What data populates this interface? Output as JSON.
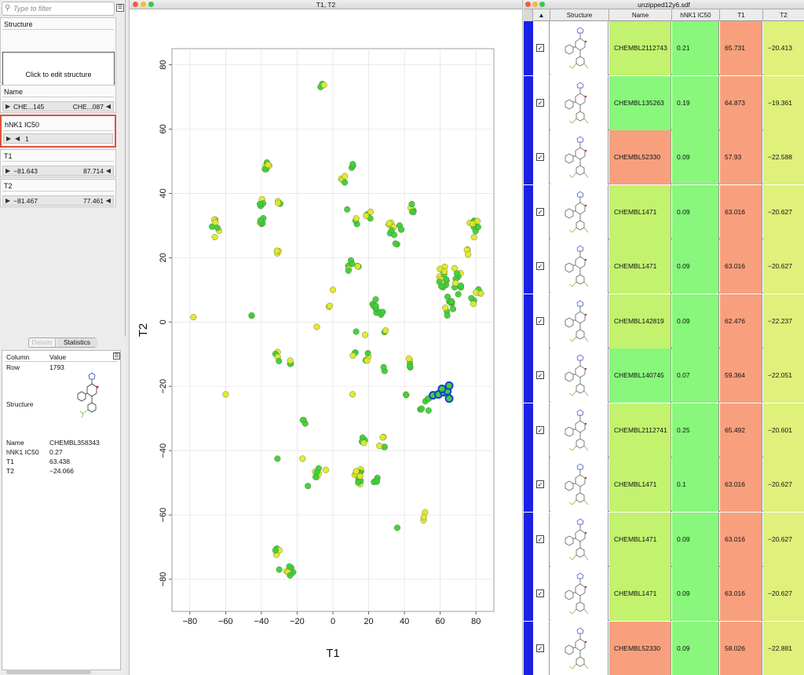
{
  "filter": {
    "placeholder": "Type to filter"
  },
  "structure_section": {
    "title": "Structure",
    "button": "Click to edit structure"
  },
  "name_section": {
    "title": "Name",
    "lo": "CHE...145",
    "hi": "CHE...087"
  },
  "hnk_section": {
    "title": "hNK1 IC50",
    "value": "1"
  },
  "t1_section": {
    "title": "T1",
    "lo": "−81.643",
    "hi": "87.714"
  },
  "t2_section": {
    "title": "T2",
    "lo": "−81.467",
    "hi": "77.461"
  },
  "details": {
    "tabs": [
      "Details",
      "Statistics"
    ],
    "col_header": "Column",
    "val_header": "Value",
    "row_label": "Row",
    "row_value": "1793",
    "structure_label": "Structure",
    "name_label": "Name",
    "name_value": "CHEMBL358343",
    "hnk_label": "hNK1 IC50",
    "hnk_value": "0.27",
    "t1_label": "T1",
    "t1_value": "63.438",
    "t2_label": "T2",
    "t2_value": "−24.066"
  },
  "plot_window": {
    "title": "T1, T2"
  },
  "table_window": {
    "title": "unzipped12y6.sdf"
  },
  "chart_data": {
    "type": "scatter",
    "xlabel": "T1",
    "ylabel": "T2",
    "xlim": [
      -90,
      90
    ],
    "ylim": [
      -90,
      85
    ],
    "x_ticks": [
      -80,
      -60,
      -40,
      -20,
      0,
      20,
      40,
      60,
      80
    ],
    "y_ticks": [
      -80,
      -60,
      -40,
      -20,
      0,
      20,
      40,
      60,
      80
    ],
    "grid": true,
    "point_colors": {
      "green": "#3ccf3c",
      "yellow": "#e6e62c",
      "edge": "#5a8a2a"
    },
    "highlight_color": "#1c3fd0",
    "clusters": [
      {
        "x": -6,
        "y": 73,
        "n": 3,
        "spread": 1.2
      },
      {
        "x": -37,
        "y": 48,
        "n": 6,
        "spread": 1.5
      },
      {
        "x": -40,
        "y": 37,
        "n": 4,
        "spread": 1.5
      },
      {
        "x": -40,
        "y": 31.5,
        "n": 6,
        "spread": 1.3
      },
      {
        "x": -30,
        "y": 37,
        "n": 3,
        "spread": 1
      },
      {
        "x": -66,
        "y": 29,
        "n": 7,
        "spread": 2.5
      },
      {
        "x": -31,
        "y": 22,
        "n": 3,
        "spread": 1
      },
      {
        "x": 6,
        "y": 44,
        "n": 4,
        "spread": 1.5
      },
      {
        "x": 11,
        "y": 49,
        "n": 3,
        "spread": 1
      },
      {
        "x": 13,
        "y": 31.5,
        "n": 4,
        "spread": 1
      },
      {
        "x": 8,
        "y": 35,
        "n": 1,
        "spread": 0
      },
      {
        "x": 9,
        "y": 18,
        "n": 5,
        "spread": 2
      },
      {
        "x": 14,
        "y": 17,
        "n": 3,
        "spread": 1.5
      },
      {
        "x": 20,
        "y": 33,
        "n": 4,
        "spread": 1.5
      },
      {
        "x": 35,
        "y": 29,
        "n": 12,
        "spread": 4
      },
      {
        "x": 44,
        "y": 35,
        "n": 5,
        "spread": 1.5
      },
      {
        "x": 79,
        "y": 29,
        "n": 10,
        "spread": 3
      },
      {
        "x": 61,
        "y": 14,
        "n": 14,
        "spread": 3
      },
      {
        "x": 70,
        "y": 13,
        "n": 10,
        "spread": 3.5
      },
      {
        "x": 80,
        "y": 9,
        "n": 8,
        "spread": 3
      },
      {
        "x": 65,
        "y": 5,
        "n": 10,
        "spread": 3
      },
      {
        "x": 76,
        "y": 22,
        "n": 3,
        "spread": 1.5
      },
      {
        "x": 24,
        "y": 5,
        "n": 8,
        "spread": 2
      },
      {
        "x": 27,
        "y": 3,
        "n": 3,
        "spread": 1
      },
      {
        "x": 29,
        "y": -2.5,
        "n": 2,
        "spread": 0.6
      },
      {
        "x": 13,
        "y": -3,
        "n": 1,
        "spread": 0
      },
      {
        "x": 18,
        "y": -4,
        "n": 1,
        "spread": 0
      },
      {
        "x": -2,
        "y": 4.5,
        "n": 2,
        "spread": 0.5
      },
      {
        "x": 0,
        "y": 10,
        "n": 1,
        "spread": 0
      },
      {
        "x": -46,
        "y": 1.5,
        "n": 2,
        "spread": 1
      },
      {
        "x": -78,
        "y": 1.5,
        "n": 1,
        "spread": 0
      },
      {
        "x": -9,
        "y": -1.5,
        "n": 1,
        "spread": 0
      },
      {
        "x": -31,
        "y": -11,
        "n": 4,
        "spread": 1.5
      },
      {
        "x": -24,
        "y": -13,
        "n": 3,
        "spread": 1
      },
      {
        "x": 12,
        "y": -10,
        "n": 3,
        "spread": 1
      },
      {
        "x": 19,
        "y": -10.5,
        "n": 4,
        "spread": 1.5
      },
      {
        "x": 28,
        "y": -15,
        "n": 2,
        "spread": 1
      },
      {
        "x": 43,
        "y": -13,
        "n": 5,
        "spread": 1.5
      },
      {
        "x": -60,
        "y": -22.5,
        "n": 1,
        "spread": 0
      },
      {
        "x": 11,
        "y": -22.5,
        "n": 1,
        "spread": 0
      },
      {
        "x": 41,
        "y": -22,
        "n": 2,
        "spread": 0.6
      },
      {
        "x": 53,
        "y": -25,
        "n": 5,
        "spread": 2
      },
      {
        "x": 49,
        "y": -27.5,
        "n": 3,
        "spread": 1
      },
      {
        "x": -16,
        "y": -30.5,
        "n": 3,
        "spread": 1
      },
      {
        "x": 17,
        "y": -36,
        "n": 4,
        "spread": 1.5
      },
      {
        "x": 29,
        "y": -37,
        "n": 4,
        "spread": 1.5
      },
      {
        "x": 26,
        "y": -38.5,
        "n": 1,
        "spread": 0
      },
      {
        "x": -31,
        "y": -42.5,
        "n": 1,
        "spread": 0
      },
      {
        "x": -17,
        "y": -42.5,
        "n": 1,
        "spread": 0
      },
      {
        "x": 14,
        "y": -48,
        "n": 14,
        "spread": 2.5
      },
      {
        "x": 24,
        "y": -49,
        "n": 5,
        "spread": 1.5
      },
      {
        "x": -9,
        "y": -46.5,
        "n": 6,
        "spread": 1.5
      },
      {
        "x": -4,
        "y": -46,
        "n": 1,
        "spread": 0
      },
      {
        "x": -14,
        "y": -51,
        "n": 1,
        "spread": 0
      },
      {
        "x": 51,
        "y": -60,
        "n": 3,
        "spread": 1.5
      },
      {
        "x": 36,
        "y": -64,
        "n": 1,
        "spread": 0
      },
      {
        "x": -31,
        "y": -72,
        "n": 4,
        "spread": 1.5
      },
      {
        "x": -30,
        "y": -77,
        "n": 1,
        "spread": 0
      },
      {
        "x": -24,
        "y": -78,
        "n": 8,
        "spread": 2
      }
    ],
    "highlighted": [
      {
        "x": 56,
        "y": -22.8
      },
      {
        "x": 59,
        "y": -22.5
      },
      {
        "x": 62,
        "y": -21.8
      },
      {
        "x": 64,
        "y": -21.5
      },
      {
        "x": 65,
        "y": -23.8
      },
      {
        "x": 65,
        "y": -19.8
      },
      {
        "x": 61,
        "y": -20.8
      }
    ]
  },
  "table": {
    "columns": [
      "Structure",
      "Name",
      "hNK1 IC50",
      "T1",
      "T2"
    ],
    "colors": {
      "green": "#88f77c",
      "lightgreen": "#c2f26e",
      "salmon": "#f8a07e",
      "yellowgreen": "#dff07b"
    },
    "rows": [
      {
        "name": "CHEMBL2112743",
        "hnk": "0.21",
        "t1": "65.731",
        "t2": "−20.413",
        "name_color": "#c2f26e"
      },
      {
        "name": "CHEMBL135263",
        "hnk": "0.19",
        "t1": "64.873",
        "t2": "−19.361",
        "name_color": "#88f77c"
      },
      {
        "name": "CHEMBL52330",
        "hnk": "0.09",
        "t1": "57.93",
        "t2": "−22.588",
        "name_color": "#f8a07e"
      },
      {
        "name": "CHEMBL1471",
        "hnk": "0.09",
        "t1": "63.016",
        "t2": "−20.627",
        "name_color": "#c2f26e"
      },
      {
        "name": "CHEMBL1471",
        "hnk": "0.09",
        "t1": "63.016",
        "t2": "−20.627",
        "name_color": "#c2f26e"
      },
      {
        "name": "CHEMBL142819",
        "hnk": "0.09",
        "t1": "62.476",
        "t2": "−22.237",
        "name_color": "#c2f26e"
      },
      {
        "name": "CHEMBL140745",
        "hnk": "0.07",
        "t1": "59.364",
        "t2": "−22.051",
        "name_color": "#88f77c"
      },
      {
        "name": "CHEMBL2112741",
        "hnk": "0.25",
        "t1": "65.492",
        "t2": "−20.601",
        "name_color": "#c2f26e"
      },
      {
        "name": "CHEMBL1471",
        "hnk": "0.1",
        "t1": "63.016",
        "t2": "−20.627",
        "name_color": "#c2f26e"
      },
      {
        "name": "CHEMBL1471",
        "hnk": "0.09",
        "t1": "63.016",
        "t2": "−20.627",
        "name_color": "#c2f26e"
      },
      {
        "name": "CHEMBL1471",
        "hnk": "0.09",
        "t1": "63.016",
        "t2": "−20.627",
        "name_color": "#c2f26e"
      },
      {
        "name": "CHEMBL52330",
        "hnk": "0.09",
        "t1": "58.026",
        "t2": "−22.881",
        "name_color": "#f8a07e"
      }
    ]
  }
}
